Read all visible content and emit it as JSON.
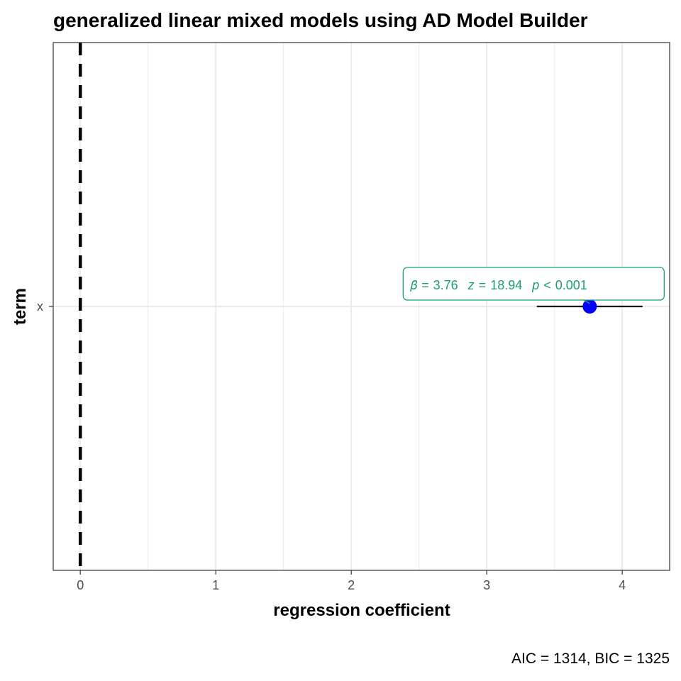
{
  "chart_data": {
    "type": "scatter",
    "title": "generalized linear mixed models using AD Model Builder",
    "xlabel": "regression coefficient",
    "ylabel": "term",
    "caption": "AIC = 1314, BIC = 1325",
    "xlim": [
      -0.2,
      4.35
    ],
    "x_ticks": [
      0,
      1,
      2,
      3,
      4
    ],
    "x_minor_ticks": [
      0.5,
      1.5,
      2.5,
      3.5
    ],
    "categories": [
      "x"
    ],
    "reference_line": 0,
    "grid": true,
    "points": [
      {
        "term": "x",
        "estimate": 3.76,
        "conf_low": 3.37,
        "conf_high": 4.15
      }
    ],
    "annotations": [
      {
        "term": "x",
        "text": "𝛽̂ = 3.76, z = 18.94, p < 0.001",
        "parts": [
          "𝛽̂",
          "=",
          "3.76",
          "z",
          "=",
          "18.94",
          "p",
          "<",
          "0.001"
        ]
      }
    ],
    "colors": {
      "point": "#0000ff",
      "errorbar": "#000000",
      "annotation": "#1b9e77",
      "grid": "#ebebeb",
      "panel_border": "#333333"
    }
  }
}
